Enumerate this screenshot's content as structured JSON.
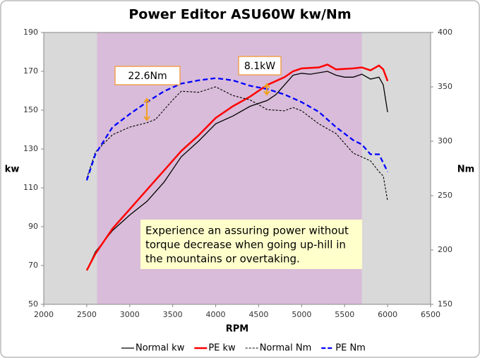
{
  "chart_data": {
    "type": "line",
    "title": "Power Editor ASU60W kw/Nm",
    "x_label": "RPM",
    "y_label": "kw",
    "y2_label": "Nm",
    "xlim": [
      2000,
      6500
    ],
    "xticks": [
      2000,
      2500,
      3000,
      3500,
      4000,
      4500,
      5000,
      5500,
      6000,
      6500
    ],
    "ylim": [
      50,
      190
    ],
    "yticks": [
      50,
      70,
      90,
      110,
      130,
      150,
      170,
      190
    ],
    "y2lim": [
      150,
      400
    ],
    "y2ticks": [
      150,
      200,
      250,
      300,
      350,
      400
    ],
    "shaded_x": [
      2620,
      5700
    ],
    "series": [
      {
        "name": "Normal kw",
        "color": "#000000",
        "dash": false,
        "width": 1.3,
        "x": [
          2500,
          2600,
          2800,
          3000,
          3200,
          3400,
          3600,
          3800,
          4000,
          4200,
          4400,
          4600,
          4700,
          4800,
          4900,
          5000,
          5100,
          5300,
          5400,
          5500,
          5600,
          5700,
          5800,
          5900,
          5950,
          6000
        ],
        "values": [
          67.5,
          77,
          88,
          96,
          103,
          113,
          126,
          134,
          143,
          147,
          152,
          155,
          158,
          163,
          168,
          169,
          168.5,
          170,
          168,
          167,
          167,
          168.5,
          166,
          167,
          163,
          149
        ]
      },
      {
        "name": "PE kw",
        "color": "#ff0000",
        "dash": false,
        "width": 2.5,
        "x": [
          2500,
          2600,
          2800,
          3000,
          3200,
          3400,
          3600,
          3800,
          4000,
          4200,
          4400,
          4600,
          4800,
          4900,
          5000,
          5200,
          5300,
          5400,
          5600,
          5700,
          5800,
          5900,
          5950,
          6000
        ],
        "values": [
          67.5,
          76,
          89,
          99,
          109,
          119,
          129,
          137,
          146,
          152,
          157,
          163,
          167,
          170,
          171.5,
          172,
          173.5,
          171,
          171.5,
          172,
          170.5,
          173,
          171,
          165
        ]
      },
      {
        "name": "Normal Nm",
        "color": "#000000",
        "dash": true,
        "width": 1.1,
        "axis": "y2",
        "x": [
          2500,
          2600,
          2800,
          3000,
          3200,
          3300,
          3500,
          3600,
          3800,
          4000,
          4200,
          4400,
          4600,
          4800,
          4900,
          5000,
          5200,
          5400,
          5600,
          5800,
          5900,
          5950,
          6000
        ],
        "values": [
          266,
          290,
          306,
          313,
          317,
          320,
          338,
          346,
          345,
          350,
          342,
          338,
          329,
          328,
          331,
          328,
          316,
          307,
          289,
          282,
          272,
          268,
          245
        ]
      },
      {
        "name": "PE Nm",
        "color": "#0000ff",
        "dash": true,
        "width": 2.3,
        "axis": "y2",
        "x": [
          2500,
          2600,
          2800,
          3000,
          3200,
          3400,
          3600,
          3800,
          4000,
          4200,
          4400,
          4600,
          4800,
          5000,
          5200,
          5400,
          5600,
          5700,
          5800,
          5900,
          6000
        ],
        "values": [
          264,
          288,
          313,
          325,
          336,
          346,
          353,
          356,
          358,
          356,
          351,
          348,
          343,
          336,
          327,
          313,
          301,
          297,
          288,
          288,
          272
        ]
      }
    ],
    "annotations": [
      "22.6Nm",
      "8.1kW"
    ],
    "note": [
      "Experience an assuring power without",
      "torque decrease when going up-hill in",
      "the mountains or overtaking."
    ]
  }
}
